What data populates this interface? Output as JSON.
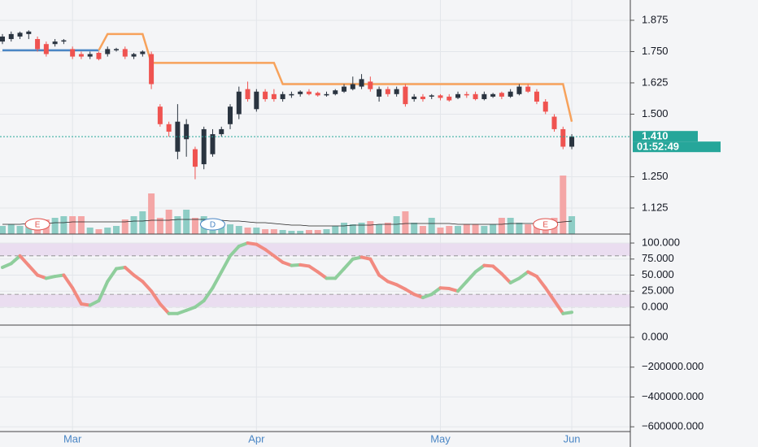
{
  "chart_data": [
    {
      "type": "candlestick",
      "categories": [
        null,
        null,
        null,
        null,
        null,
        null,
        null,
        null,
        "Mar",
        null,
        null,
        null,
        null,
        null,
        null,
        null,
        null,
        null,
        null,
        null,
        null,
        null,
        null,
        null,
        null,
        null,
        null,
        null,
        null,
        "Apr",
        null,
        null,
        null,
        null,
        null,
        null,
        null,
        null,
        null,
        null,
        null,
        null,
        null,
        null,
        null,
        null,
        null,
        null,
        null,
        null,
        "May",
        null,
        null,
        null,
        null,
        null,
        null,
        null,
        null,
        null,
        null,
        null,
        null,
        null,
        null,
        "Jun"
      ],
      "open": [
        1.79,
        1.8,
        1.81,
        1.82,
        1.8,
        1.78,
        1.78,
        1.79,
        1.76,
        1.74,
        1.73,
        1.745,
        1.74,
        1.755,
        1.76,
        1.73,
        1.74,
        1.74,
        1.53,
        1.46,
        1.35,
        1.4,
        1.36,
        1.3,
        1.34,
        1.42,
        1.46,
        1.5,
        1.6,
        1.52,
        1.59,
        1.58,
        1.56,
        1.575,
        1.58,
        1.59,
        1.585,
        1.575,
        1.58,
        1.59,
        1.6,
        1.61,
        1.63,
        1.57,
        1.6,
        1.58,
        1.61,
        1.56,
        1.57,
        1.57,
        1.575,
        1.57,
        1.565,
        1.58,
        1.58,
        1.56,
        1.57,
        1.585,
        1.57,
        1.58,
        1.61,
        1.59,
        1.55,
        1.49,
        1.44,
        1.37
      ],
      "high": [
        1.82,
        1.83,
        1.83,
        1.835,
        1.81,
        1.79,
        1.8,
        1.8,
        1.77,
        1.75,
        1.75,
        1.75,
        1.77,
        1.765,
        1.77,
        1.745,
        1.755,
        1.75,
        1.54,
        1.47,
        1.54,
        1.48,
        1.37,
        1.45,
        1.44,
        1.45,
        1.54,
        1.61,
        1.63,
        1.6,
        1.6,
        1.6,
        1.59,
        1.59,
        1.595,
        1.6,
        1.59,
        1.59,
        1.6,
        1.62,
        1.65,
        1.66,
        1.65,
        1.61,
        1.61,
        1.61,
        1.62,
        1.58,
        1.58,
        1.58,
        1.58,
        1.58,
        1.59,
        1.59,
        1.59,
        1.59,
        1.585,
        1.59,
        1.6,
        1.62,
        1.62,
        1.6,
        1.56,
        1.5,
        1.45,
        1.42
      ],
      "low": [
        1.78,
        1.79,
        1.8,
        1.8,
        1.75,
        1.73,
        1.77,
        1.78,
        1.72,
        1.72,
        1.72,
        1.715,
        1.73,
        1.75,
        1.72,
        1.72,
        1.73,
        1.6,
        1.45,
        1.41,
        1.32,
        1.33,
        1.24,
        1.28,
        1.33,
        1.41,
        1.44,
        1.48,
        1.55,
        1.51,
        1.55,
        1.55,
        1.55,
        1.565,
        1.57,
        1.575,
        1.57,
        1.57,
        1.575,
        1.585,
        1.595,
        1.6,
        1.59,
        1.55,
        1.57,
        1.57,
        1.53,
        1.55,
        1.55,
        1.56,
        1.555,
        1.55,
        1.56,
        1.565,
        1.555,
        1.555,
        1.565,
        1.56,
        1.565,
        1.575,
        1.585,
        1.54,
        1.5,
        1.43,
        1.36,
        1.36
      ],
      "close": [
        1.81,
        1.82,
        1.825,
        1.83,
        1.76,
        1.74,
        1.79,
        1.795,
        1.73,
        1.73,
        1.74,
        1.72,
        1.76,
        1.76,
        1.73,
        1.74,
        1.75,
        1.62,
        1.46,
        1.43,
        1.47,
        1.46,
        1.29,
        1.44,
        1.42,
        1.44,
        1.53,
        1.59,
        1.56,
        1.59,
        1.56,
        1.56,
        1.58,
        1.58,
        1.59,
        1.58,
        1.575,
        1.58,
        1.595,
        1.61,
        1.62,
        1.64,
        1.6,
        1.6,
        1.58,
        1.6,
        1.54,
        1.57,
        1.56,
        1.575,
        1.565,
        1.555,
        1.58,
        1.575,
        1.56,
        1.58,
        1.58,
        1.57,
        1.59,
        1.61,
        1.59,
        1.55,
        1.51,
        1.44,
        1.37,
        1.41
      ],
      "up_color": "#2a3440",
      "down_color": "#ef5350",
      "ylim": [
        1.021,
        1.956
      ],
      "yticks": [
        1.125,
        {
          "value": 1.25,
          "label": "1.250"
        },
        {
          "value": 1.5,
          "label": "1.500"
        },
        1.625,
        {
          "value": 1.75,
          "label": "1.750"
        },
        1.875
      ],
      "volume": {
        "values": [
          10,
          12,
          10,
          12,
          14,
          18,
          20,
          22,
          22,
          22,
          8,
          6,
          8,
          10,
          18,
          22,
          28,
          50,
          20,
          30,
          22,
          30,
          20,
          22,
          18,
          15,
          12,
          10,
          8,
          8,
          6,
          6,
          5,
          4,
          4,
          5,
          5,
          6,
          10,
          14,
          12,
          14,
          16,
          12,
          14,
          22,
          28,
          14,
          10,
          20,
          8,
          10,
          10,
          12,
          12,
          10,
          12,
          20,
          20,
          14,
          12,
          14,
          12,
          20,
          72,
          22
        ],
        "ma": [
          12,
          12,
          12,
          13,
          13,
          13,
          14,
          14,
          15,
          15,
          15,
          15,
          15,
          15,
          15,
          16,
          16,
          17,
          17,
          17,
          18,
          18,
          18,
          18,
          17,
          17,
          16,
          16,
          15,
          14,
          14,
          13,
          12,
          11,
          11,
          10,
          10,
          10,
          10,
          10,
          11,
          11,
          11,
          12,
          12,
          12,
          13,
          13,
          13,
          13,
          13,
          13,
          12,
          12,
          12,
          12,
          12,
          12,
          13,
          13,
          13,
          13,
          13,
          14,
          15,
          16
        ],
        "ylim": [
          0,
          100
        ],
        "up_color": "#8ecdc5",
        "down_color": "#f4a6a6"
      },
      "lines": [
        {
          "color": "#4a86c5",
          "values": [
            1.755,
            1.755,
            1.755,
            1.755,
            1.755,
            1.755,
            1.755,
            1.755,
            1.755,
            1.755,
            1.755,
            1.755,
            null,
            null,
            null,
            null,
            null,
            null,
            null,
            null,
            null,
            null,
            null,
            null,
            null,
            null,
            null,
            null,
            null,
            null,
            null,
            null,
            null,
            null,
            null,
            null,
            null,
            null,
            null,
            null,
            null,
            null,
            null,
            null,
            null,
            null,
            null,
            null,
            null,
            null,
            null,
            null,
            null,
            null,
            null,
            null,
            null,
            null,
            null,
            null,
            null,
            null,
            null,
            null,
            null,
            null
          ]
        },
        {
          "color": "#f7a25b",
          "values": [
            null,
            null,
            null,
            null,
            null,
            null,
            null,
            null,
            null,
            null,
            null,
            1.755,
            1.82,
            1.82,
            1.82,
            1.82,
            1.82,
            1.705,
            1.705,
            1.705,
            1.705,
            1.705,
            1.705,
            1.705,
            1.705,
            1.705,
            1.705,
            1.705,
            1.705,
            1.705,
            1.705,
            1.705,
            1.62,
            1.62,
            1.62,
            1.62,
            1.62,
            1.62,
            1.62,
            1.62,
            1.62,
            1.62,
            1.62,
            1.62,
            1.62,
            1.62,
            1.62,
            1.62,
            1.62,
            1.62,
            1.62,
            1.62,
            1.62,
            1.62,
            1.62,
            1.62,
            1.62,
            1.62,
            1.62,
            1.62,
            1.62,
            1.62,
            1.62,
            1.62,
            1.62,
            1.47
          ]
        }
      ],
      "last_price": {
        "value": 1.41,
        "label": "1.410"
      },
      "countdown": "01:52:49",
      "price_color": "#26a69a",
      "events": [
        {
          "index": 4,
          "text": "E",
          "color": "#e0504a"
        },
        {
          "index": 24,
          "text": "D",
          "color": "#4a86c5"
        },
        {
          "index": 62,
          "text": "E",
          "color": "#e0504a"
        }
      ]
    },
    {
      "type": "line",
      "values": [
        62,
        68,
        80,
        65,
        50,
        45,
        48,
        50,
        30,
        5,
        3,
        10,
        40,
        60,
        62,
        50,
        40,
        25,
        5,
        -10,
        -10,
        -5,
        0,
        10,
        30,
        55,
        80,
        95,
        100,
        98,
        90,
        80,
        70,
        65,
        66,
        64,
        55,
        45,
        45,
        60,
        75,
        78,
        75,
        50,
        40,
        35,
        28,
        20,
        15,
        20,
        30,
        29,
        25,
        40,
        55,
        65,
        64,
        52,
        38,
        45,
        55,
        48,
        30,
        10,
        -10,
        -8
      ],
      "up_color": "#8fce9c",
      "down_color": "#f28a80",
      "ylim": [
        -28,
        114
      ],
      "yticks": [
        {
          "value": 0,
          "label": "0.000"
        },
        {
          "value": 25,
          "label": "25.000"
        },
        {
          "value": 50,
          "label": "50.000"
        },
        {
          "value": 75,
          "label": "75.000"
        },
        {
          "value": 100,
          "label": "100.000"
        }
      ],
      "bands": [
        [
          80,
          100
        ],
        [
          0,
          20
        ]
      ],
      "band_color": "#e6d3ec"
    },
    {
      "type": "empty",
      "ylim": [
        -632000,
        82000
      ],
      "yticks": [
        {
          "value": 0,
          "label": "0.000"
        },
        {
          "value": -200000,
          "label": "−200000.000"
        },
        {
          "value": -400000,
          "label": "−400000.000"
        },
        {
          "value": -600000,
          "label": "−600000.000"
        }
      ]
    }
  ]
}
